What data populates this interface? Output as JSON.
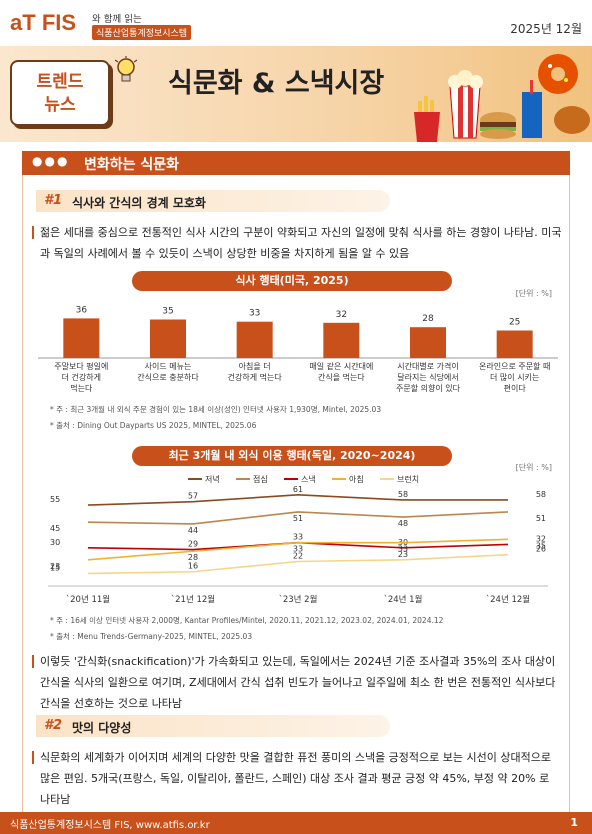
{
  "header": {
    "logo_a": "a",
    "logo_t": "T",
    "logo_fis": "FIS",
    "tagline": "와 함께 읽는",
    "system": "식품산업통계정보시스템",
    "date": "2025년 12월"
  },
  "banner": {
    "badge_line1": "트렌드",
    "badge_line2": "뉴스",
    "title": "식문화 & 스낵시장"
  },
  "section": {
    "dots": "●●●",
    "title": "변화하는 식문화"
  },
  "sub1": {
    "num": "#1",
    "label": "식사와 간식의 경계 모호화"
  },
  "para1": "젊은 세대를 중심으로 전통적인 식사 시간의 구분이 약화되고 자신의 일정에 맞춰 식사를 하는 경향이 나타남. 미국과 독일의 사례에서 볼 수 있듯이 스낵이 상당한 비중을 차지하게 됨을 알 수 있음",
  "chart1_title": "식사 행태(미국, 2025)",
  "chart1_unit": "[단위 : %]",
  "chart1_notes": [
    "* 주 : 최근 3개월 내 외식 주문 경험이 있는 18세 이상(성인) 인터넷 사용자 1,930명, Mintel, 2025.03",
    "* 출처 : Dining Out Dayparts US 2025, MINTEL, 2025.06"
  ],
  "chart2_title": "최근 3개월 내 외식 이용 행태(독일, 2020~2024)",
  "chart2_unit": "[단위 : %]",
  "chart2_notes": [
    "* 주 : 16세 이상 인터넷 사용자 2,000명, Kantar Profiles/Mintel, 2020.11, 2021.12, 2023.02, 2024.01, 2024.12",
    "* 출처 : Menu Trends-Germany-2025, MINTEL, 2025.03"
  ],
  "para2": "이렇듯 '간식화(snackification)'가 가속화되고 있는데, 독일에서는 2024년 기준 조사결과 35%의 조사 대상이 간식을 식사의 일환으로 여기며, Z세대에서 간식 섭취 빈도가 늘어나고 일주일에 최소 한 번은 전통적인 식사보다 간식을 선호하는 것으로 나타남",
  "sub2": {
    "num": "#2",
    "label": "맛의 다양성"
  },
  "para3": "식문화의 세계화가 이어지며 세계의 다양한 맛을 결합한 퓨전 풍미의 스낵을 긍정적으로 보는 시선이 상대적으로 많은 편임. 5개국(프랑스, 독일, 이탈리아, 폴란드, 스페인) 대상 조사 결과 평균 긍정 약 45%, 부정 약 20% 로 나타남",
  "footer": {
    "text": "식품산업통계정보시스템 FIS, www.atfis.or.kr",
    "page": "1"
  },
  "chart_data": [
    {
      "type": "bar",
      "title": "식사 행태(미국, 2025)",
      "categories": [
        [
          "주말보다 평일에",
          "더 건강하게",
          "먹는다"
        ],
        [
          "사이드 메뉴는",
          "간식으로 충분하다"
        ],
        [
          "아침을 더",
          "건강하게 먹는다"
        ],
        [
          "매일 같은 시간대에",
          "간식을 먹는다"
        ],
        [
          "시간대별로 가격이",
          "달라지는 식당에서",
          "주문할 의향이 있다"
        ],
        [
          "온라인으로 주문할 때",
          "더 많이 시키는",
          "편이다"
        ]
      ],
      "values": [
        36,
        35,
        33,
        32,
        28,
        25
      ],
      "ylim": [
        0,
        40
      ],
      "color": "#c8501a"
    },
    {
      "type": "line",
      "title": "최근 3개월 내 외식 이용 행태(독일, 2020~2024)",
      "x": [
        "`20년 11월",
        "`21년 12월",
        "`23년 2월",
        "`24년 1월",
        "`24년 12월"
      ],
      "legend": "top",
      "series": [
        {
          "name": "저녁",
          "values": [
            55,
            57,
            61,
            58,
            58
          ],
          "color": "#8b4a1f"
        },
        {
          "name": "점심",
          "values": [
            45,
            44,
            51,
            48,
            51
          ],
          "color": "#b9874f"
        },
        {
          "name": "스낵",
          "values": [
            30,
            29,
            33,
            30,
            32
          ],
          "color": "#c00000"
        },
        {
          "name": "아침",
          "values": [
            23,
            28,
            33,
            33,
            35
          ],
          "color": "#f2b134"
        },
        {
          "name": "브런치",
          "values": [
            15,
            16,
            22,
            23,
            26
          ],
          "color": "#f6d58a"
        }
      ],
      "ylim": [
        10,
        65
      ]
    }
  ]
}
